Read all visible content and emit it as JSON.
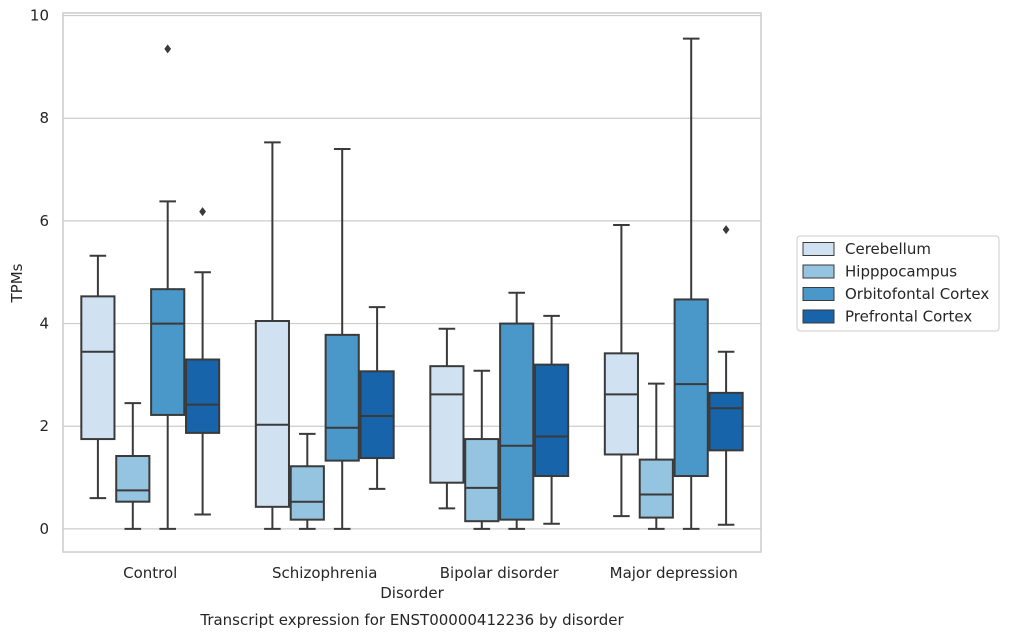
{
  "caption": "Transcript expression for ENST00000412236 by disorder",
  "chart_data": {
    "type": "boxplot",
    "xlabel": "Disorder",
    "ylabel": "TPMs",
    "ylim": [
      -0.45,
      10.05
    ],
    "yticks": [
      0,
      2,
      4,
      6,
      8,
      10
    ],
    "grid": true,
    "legend_position": "right",
    "categories": [
      "Control",
      "Schizophrenia",
      "Bipolar disorder",
      "Major depression"
    ],
    "series": [
      {
        "name": "Cerebellum",
        "color": "#d0e1f2",
        "boxes": [
          {
            "whislo": 0.6,
            "q1": 1.75,
            "med": 3.45,
            "q3": 4.53,
            "whishi": 5.32,
            "fliers": []
          },
          {
            "whislo": 0.0,
            "q1": 0.43,
            "med": 2.03,
            "q3": 4.05,
            "whishi": 7.53,
            "fliers": []
          },
          {
            "whislo": 0.4,
            "q1": 0.9,
            "med": 2.62,
            "q3": 3.17,
            "whishi": 3.9,
            "fliers": []
          },
          {
            "whislo": 0.25,
            "q1": 1.45,
            "med": 2.62,
            "q3": 3.42,
            "whishi": 5.92,
            "fliers": []
          }
        ]
      },
      {
        "name": "Hipppocampus",
        "color": "#94c4df",
        "boxes": [
          {
            "whislo": 0.0,
            "q1": 0.53,
            "med": 0.75,
            "q3": 1.42,
            "whishi": 2.45,
            "fliers": []
          },
          {
            "whislo": 0.0,
            "q1": 0.18,
            "med": 0.53,
            "q3": 1.22,
            "whishi": 1.85,
            "fliers": []
          },
          {
            "whislo": 0.0,
            "q1": 0.15,
            "med": 0.8,
            "q3": 1.75,
            "whishi": 3.08,
            "fliers": []
          },
          {
            "whislo": 0.0,
            "q1": 0.22,
            "med": 0.67,
            "q3": 1.35,
            "whishi": 2.83,
            "fliers": []
          }
        ]
      },
      {
        "name": "Orbitofontal Cortex",
        "color": "#4a98c9",
        "boxes": [
          {
            "whislo": 0.0,
            "q1": 2.22,
            "med": 4.0,
            "q3": 4.67,
            "whishi": 6.38,
            "fliers": [
              9.35
            ]
          },
          {
            "whislo": 0.0,
            "q1": 1.33,
            "med": 1.97,
            "q3": 3.78,
            "whishi": 7.4,
            "fliers": []
          },
          {
            "whislo": 0.0,
            "q1": 0.18,
            "med": 1.62,
            "q3": 4.0,
            "whishi": 4.6,
            "fliers": []
          },
          {
            "whislo": 0.0,
            "q1": 1.03,
            "med": 2.82,
            "q3": 4.47,
            "whishi": 9.55,
            "fliers": []
          }
        ]
      },
      {
        "name": "Prefrontal Cortex",
        "color": "#1764ab",
        "boxes": [
          {
            "whislo": 0.28,
            "q1": 1.87,
            "med": 2.42,
            "q3": 3.3,
            "whishi": 5.0,
            "fliers": [
              6.18
            ]
          },
          {
            "whislo": 0.78,
            "q1": 1.38,
            "med": 2.2,
            "q3": 3.07,
            "whishi": 4.32,
            "fliers": []
          },
          {
            "whislo": 0.1,
            "q1": 1.03,
            "med": 1.8,
            "q3": 3.2,
            "whishi": 4.15,
            "fliers": []
          },
          {
            "whislo": 0.08,
            "q1": 1.53,
            "med": 2.35,
            "q3": 2.65,
            "whishi": 3.45,
            "fliers": [
              5.83
            ]
          }
        ]
      }
    ]
  }
}
